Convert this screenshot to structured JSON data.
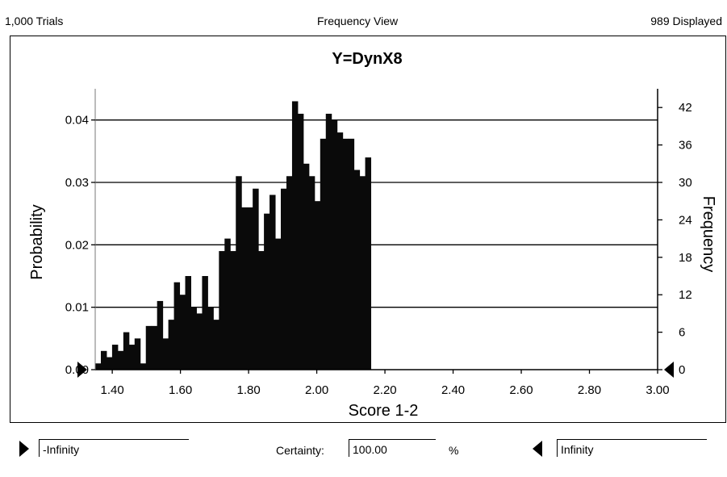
{
  "header": {
    "trials": "1,000 Trials",
    "view": "Frequency View",
    "displayed": "989 Displayed"
  },
  "footer": {
    "left_value": "-Infinity",
    "certainty_label": "Certainty:",
    "certainty_value": "100.00",
    "percent": "%",
    "right_value": "Infinity"
  },
  "colors": {
    "bar": "#0a0a0a",
    "grid": "#000000"
  },
  "chart_data": {
    "type": "bar",
    "title": "Y=DynX8",
    "xlabel": "Score 1-2",
    "ylabel": "Probability",
    "y2label": "Frequency",
    "xlim": [
      1.35,
      3.0
    ],
    "ylim": [
      0,
      0.045
    ],
    "y2lim": [
      0,
      45
    ],
    "xticks": [
      "1.40",
      "1.60",
      "1.80",
      "2.00",
      "2.20",
      "2.40",
      "2.60",
      "2.80",
      "3.00"
    ],
    "xtick_values": [
      1.4,
      1.6,
      1.8,
      2.0,
      2.2,
      2.4,
      2.6,
      2.8,
      3.0
    ],
    "yticks": [
      "0.00",
      "0.01",
      "0.02",
      "0.03",
      "0.04"
    ],
    "ytick_values": [
      0,
      0.01,
      0.02,
      0.03,
      0.04
    ],
    "y2ticks": [
      "0",
      "6",
      "12",
      "18",
      "24",
      "30",
      "36",
      "42"
    ],
    "y2tick_values": [
      0,
      6,
      12,
      18,
      24,
      30,
      36,
      42
    ],
    "grid": "horizontal",
    "bin_width": 0.0165,
    "bin_start": 1.35,
    "frequencies": [
      1,
      3,
      2,
      4,
      3,
      6,
      4,
      5,
      1,
      7,
      7,
      11,
      5,
      8,
      14,
      12,
      15,
      10,
      9,
      15,
      10,
      8,
      19,
      21,
      19,
      31,
      26,
      26,
      29,
      19,
      25,
      28,
      21,
      29,
      31,
      43,
      41,
      33,
      31,
      27,
      37,
      41,
      40,
      38,
      37,
      37,
      32,
      31,
      34
    ]
  }
}
